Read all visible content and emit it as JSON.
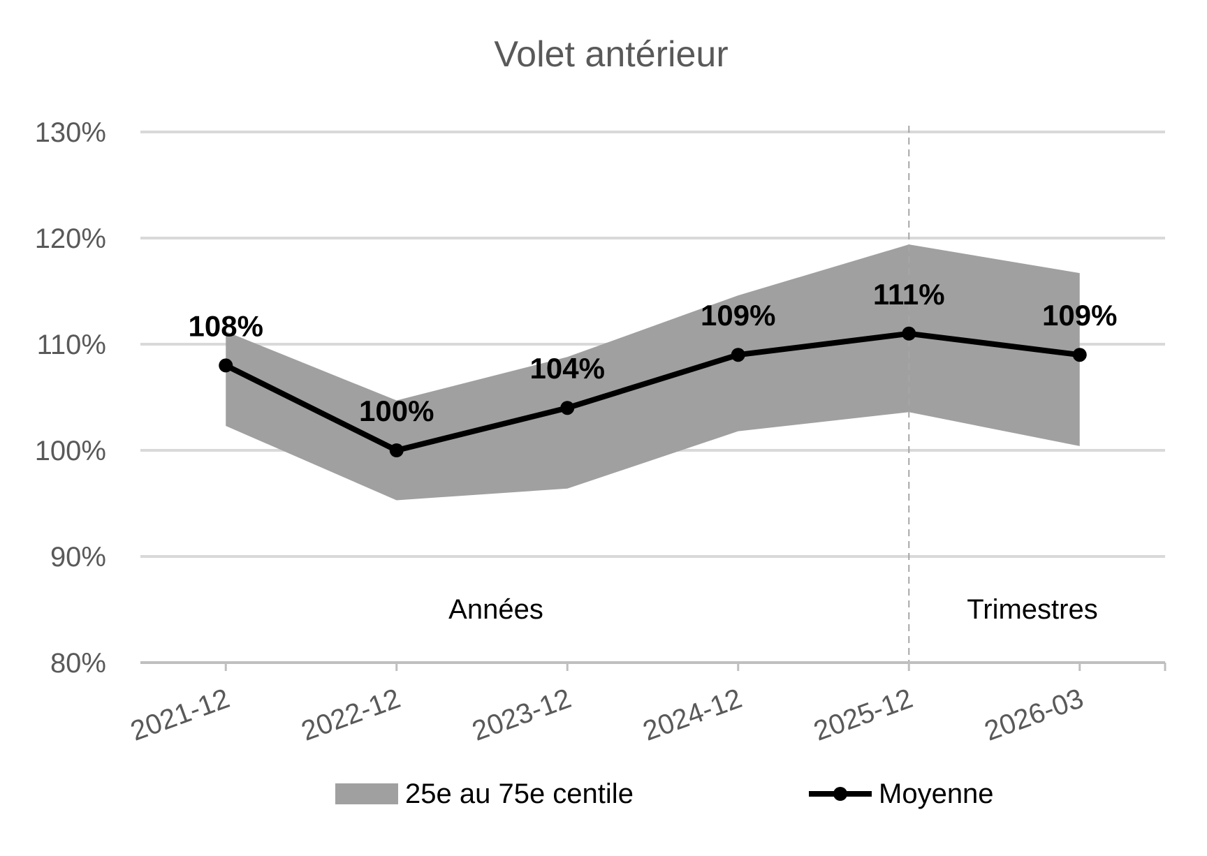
{
  "chart_data": {
    "type": "line",
    "title": "Volet antérieur",
    "categories": [
      "2021-12",
      "2022-12",
      "2023-12",
      "2024-12",
      "2025-12",
      "2026-03"
    ],
    "series": [
      {
        "name": "Moyenne",
        "values": [
          108,
          100,
          104,
          109,
          111,
          109
        ],
        "labels": [
          "108%",
          "100%",
          "104%",
          "109%",
          "111%",
          "109%"
        ],
        "color": "#000000"
      },
      {
        "name": "25e au 75e centile",
        "type": "band",
        "lower": [
          102.3,
          95.3,
          96.4,
          101.8,
          103.6,
          100.4
        ],
        "upper": [
          111.2,
          104.7,
          108.8,
          114.6,
          119.4,
          116.7
        ],
        "color": "#a0a0a0"
      }
    ],
    "yticks": [
      "80%",
      "90%",
      "100%",
      "110%",
      "120%",
      "130%"
    ],
    "ylim": [
      80,
      130
    ],
    "grid": true,
    "annotations": [
      "Années",
      "Trimestres"
    ],
    "divider_after_category": "2025-12",
    "legend": {
      "position": "bottom",
      "entries": [
        "25e au 75e centile",
        "Moyenne"
      ]
    }
  }
}
